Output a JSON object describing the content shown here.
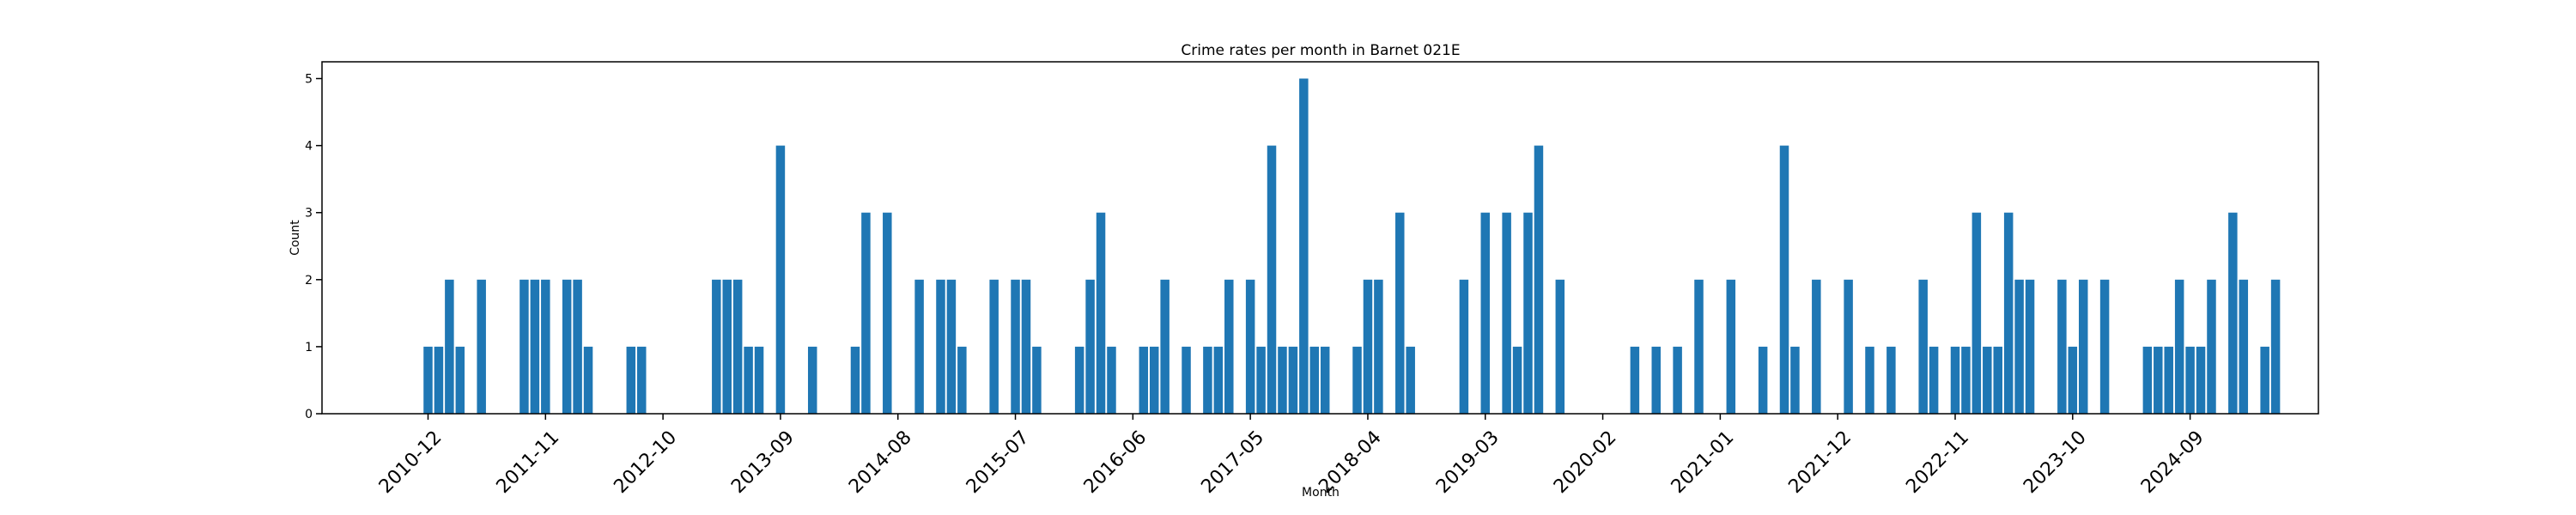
{
  "chart_data": {
    "type": "bar",
    "title": "Crime rates per month in Barnet 021E",
    "xlabel": "Month",
    "ylabel": "Count",
    "ylim": [
      0,
      5.25
    ],
    "yticks": [
      0,
      1,
      2,
      3,
      4,
      5
    ],
    "grid": false,
    "series_color": "#1f77b4",
    "xtick_labels": [
      "2010-12",
      "2011-11",
      "2012-10",
      "2013-09",
      "2014-08",
      "2015-07",
      "2016-06",
      "2017-05",
      "2018-04",
      "2019-03",
      "2020-02",
      "2021-01",
      "2021-12",
      "2022-11",
      "2023-10",
      "2024-09"
    ],
    "bars": [
      {
        "x": "2010-12",
        "value": 1
      },
      {
        "x": "2011-01",
        "value": 1
      },
      {
        "x": "2011-02",
        "value": 2
      },
      {
        "x": "2011-03",
        "value": 1
      },
      {
        "x": "2011-05",
        "value": 2
      },
      {
        "x": "2011-09",
        "value": 2
      },
      {
        "x": "2011-10",
        "value": 2
      },
      {
        "x": "2011-11",
        "value": 2
      },
      {
        "x": "2012-01",
        "value": 2
      },
      {
        "x": "2012-02",
        "value": 2
      },
      {
        "x": "2012-03",
        "value": 1
      },
      {
        "x": "2012-07",
        "value": 1
      },
      {
        "x": "2012-08",
        "value": 1
      },
      {
        "x": "2013-03",
        "value": 2
      },
      {
        "x": "2013-04",
        "value": 2
      },
      {
        "x": "2013-05",
        "value": 2
      },
      {
        "x": "2013-06",
        "value": 1
      },
      {
        "x": "2013-07",
        "value": 1
      },
      {
        "x": "2013-09",
        "value": 4
      },
      {
        "x": "2013-12",
        "value": 1
      },
      {
        "x": "2014-04",
        "value": 1
      },
      {
        "x": "2014-05",
        "value": 3
      },
      {
        "x": "2014-07",
        "value": 3
      },
      {
        "x": "2014-10",
        "value": 2
      },
      {
        "x": "2014-12",
        "value": 2
      },
      {
        "x": "2015-01",
        "value": 2
      },
      {
        "x": "2015-02",
        "value": 1
      },
      {
        "x": "2015-05",
        "value": 2
      },
      {
        "x": "2015-07",
        "value": 2
      },
      {
        "x": "2015-08",
        "value": 2
      },
      {
        "x": "2015-09",
        "value": 1
      },
      {
        "x": "2016-01",
        "value": 1
      },
      {
        "x": "2016-02",
        "value": 2
      },
      {
        "x": "2016-03",
        "value": 3
      },
      {
        "x": "2016-04",
        "value": 1
      },
      {
        "x": "2016-07",
        "value": 1
      },
      {
        "x": "2016-08",
        "value": 1
      },
      {
        "x": "2016-09",
        "value": 2
      },
      {
        "x": "2016-11",
        "value": 1
      },
      {
        "x": "2017-01",
        "value": 1
      },
      {
        "x": "2017-02",
        "value": 1
      },
      {
        "x": "2017-03",
        "value": 2
      },
      {
        "x": "2017-05",
        "value": 2
      },
      {
        "x": "2017-06",
        "value": 1
      },
      {
        "x": "2017-07",
        "value": 4
      },
      {
        "x": "2017-08",
        "value": 1
      },
      {
        "x": "2017-09",
        "value": 1
      },
      {
        "x": "2017-10",
        "value": 5
      },
      {
        "x": "2017-11",
        "value": 1
      },
      {
        "x": "2017-12",
        "value": 1
      },
      {
        "x": "2018-03",
        "value": 1
      },
      {
        "x": "2018-04",
        "value": 2
      },
      {
        "x": "2018-05",
        "value": 2
      },
      {
        "x": "2018-07",
        "value": 3
      },
      {
        "x": "2018-08",
        "value": 1
      },
      {
        "x": "2019-01",
        "value": 2
      },
      {
        "x": "2019-03",
        "value": 3
      },
      {
        "x": "2019-05",
        "value": 3
      },
      {
        "x": "2019-06",
        "value": 1
      },
      {
        "x": "2019-07",
        "value": 3
      },
      {
        "x": "2019-08",
        "value": 4
      },
      {
        "x": "2019-10",
        "value": 2
      },
      {
        "x": "2020-05",
        "value": 1
      },
      {
        "x": "2020-07",
        "value": 1
      },
      {
        "x": "2020-09",
        "value": 1
      },
      {
        "x": "2020-11",
        "value": 2
      },
      {
        "x": "2021-02",
        "value": 2
      },
      {
        "x": "2021-05",
        "value": 1
      },
      {
        "x": "2021-07",
        "value": 4
      },
      {
        "x": "2021-08",
        "value": 1
      },
      {
        "x": "2021-10",
        "value": 2
      },
      {
        "x": "2022-01",
        "value": 2
      },
      {
        "x": "2022-03",
        "value": 1
      },
      {
        "x": "2022-05",
        "value": 1
      },
      {
        "x": "2022-08",
        "value": 2
      },
      {
        "x": "2022-09",
        "value": 1
      },
      {
        "x": "2022-11",
        "value": 1
      },
      {
        "x": "2022-12",
        "value": 1
      },
      {
        "x": "2023-01",
        "value": 3
      },
      {
        "x": "2023-02",
        "value": 1
      },
      {
        "x": "2023-03",
        "value": 1
      },
      {
        "x": "2023-04",
        "value": 3
      },
      {
        "x": "2023-05",
        "value": 2
      },
      {
        "x": "2023-06",
        "value": 2
      },
      {
        "x": "2023-09",
        "value": 2
      },
      {
        "x": "2023-10",
        "value": 1
      },
      {
        "x": "2023-11",
        "value": 2
      },
      {
        "x": "2024-01",
        "value": 2
      },
      {
        "x": "2024-05",
        "value": 1
      },
      {
        "x": "2024-06",
        "value": 1
      },
      {
        "x": "2024-07",
        "value": 1
      },
      {
        "x": "2024-08",
        "value": 2
      },
      {
        "x": "2024-09",
        "value": 1
      },
      {
        "x": "2024-10",
        "value": 1
      },
      {
        "x": "2024-11",
        "value": 2
      },
      {
        "x": "2025-01",
        "value": 3
      },
      {
        "x": "2025-02",
        "value": 2
      },
      {
        "x": "2025-04",
        "value": 1
      },
      {
        "x": "2025-05",
        "value": 2
      }
    ]
  }
}
